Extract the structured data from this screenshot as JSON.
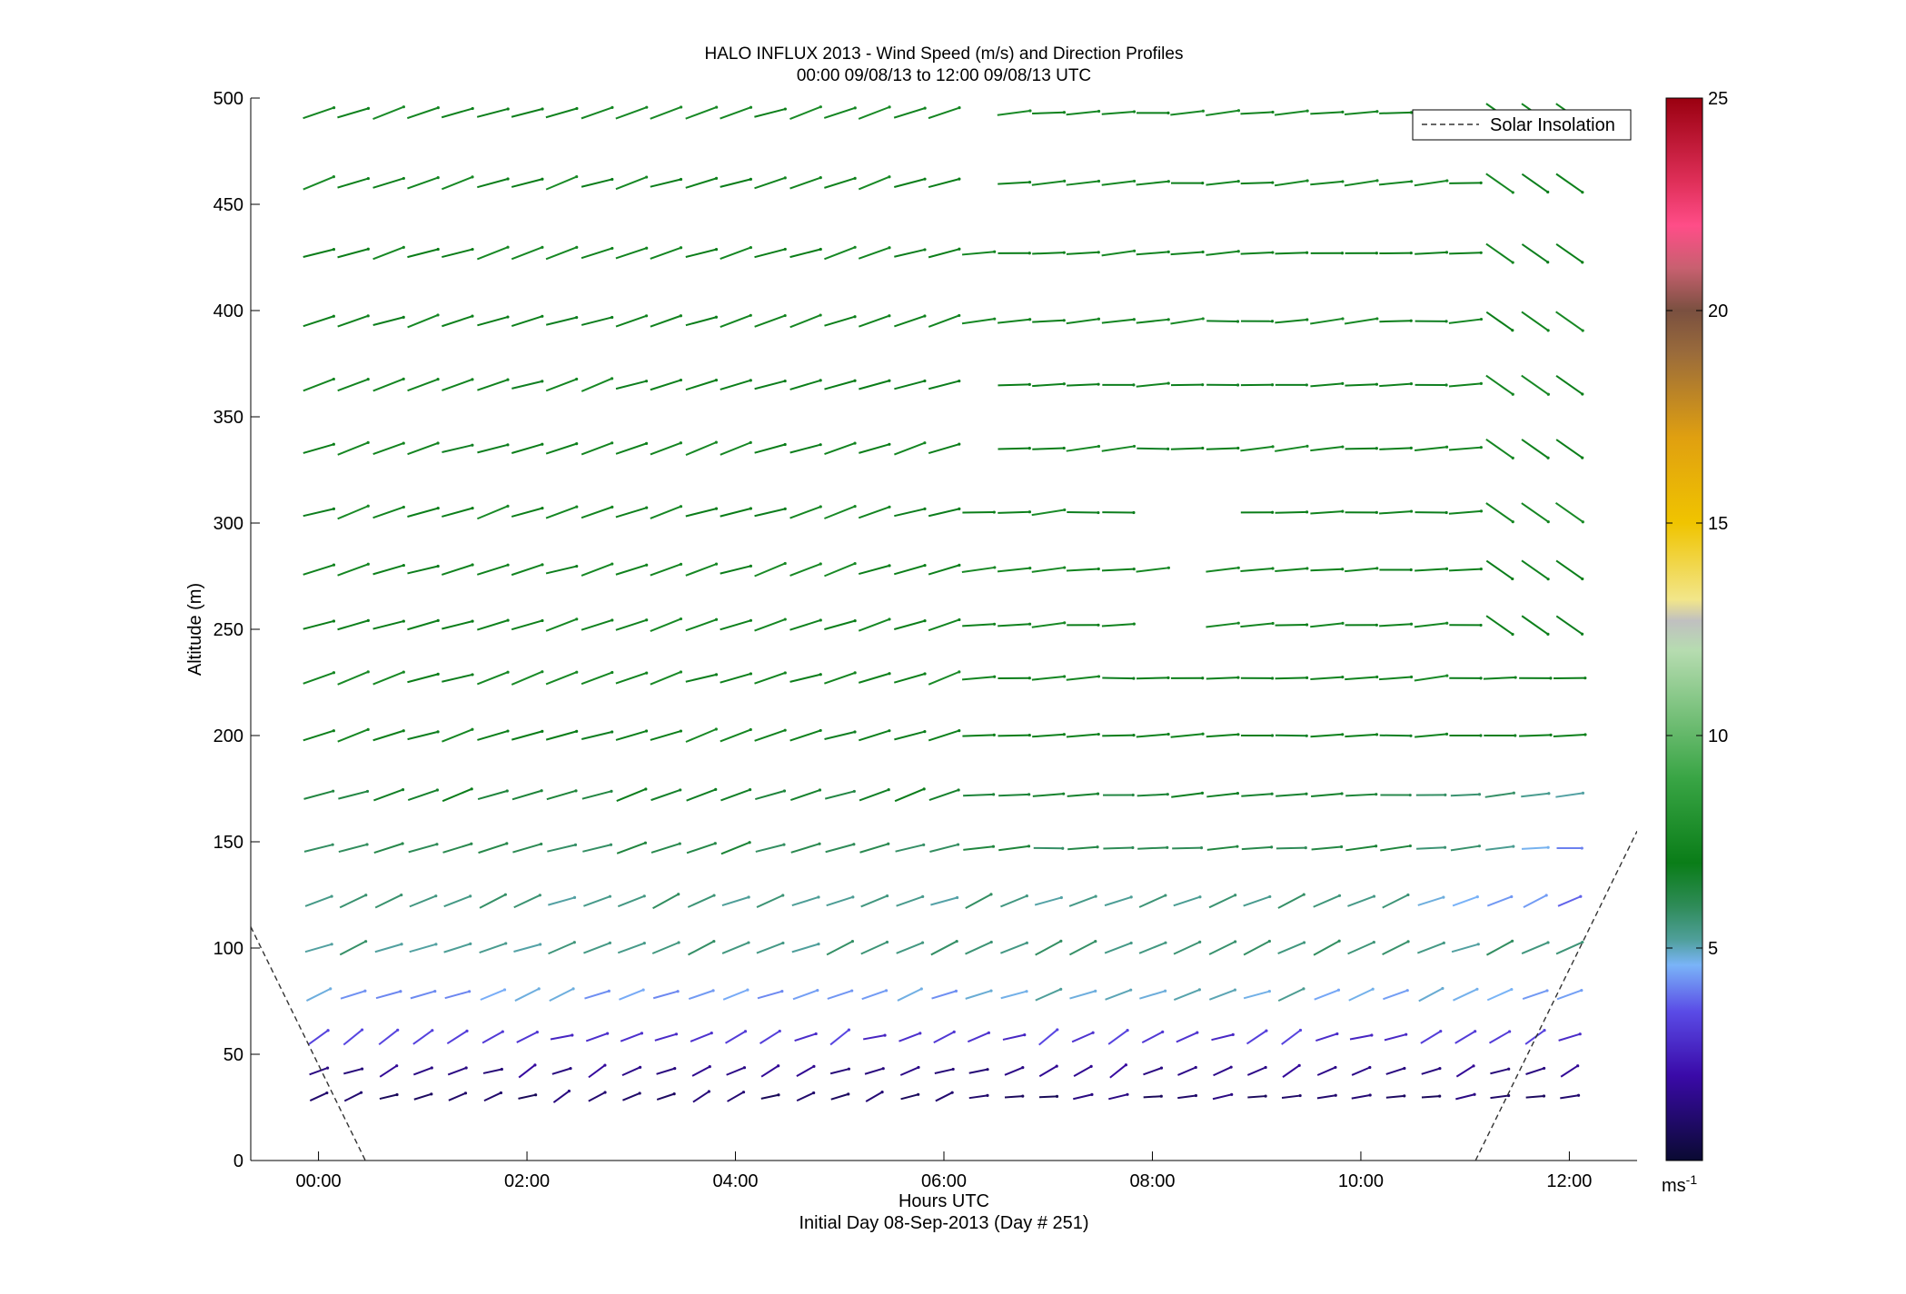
{
  "chart_data": {
    "type": "quiver",
    "title": "HALO INFLUX 2013 - Wind Speed (m/s) and Direction Profiles",
    "subtitle": "00:00 09/08/13 to 12:00 09/08/13  UTC",
    "xlabel": "Hours UTC",
    "xlabel2": "Initial Day 08-Sep-2013 (Day # 251)",
    "ylabel": "Altitude (m)",
    "x_tick_labels": [
      "00:00",
      "02:00",
      "04:00",
      "06:00",
      "08:00",
      "10:00",
      "12:00"
    ],
    "x_tick_values_hours": [
      0,
      2,
      4,
      6,
      8,
      10,
      12
    ],
    "xlim_hours": [
      -0.65,
      12.65
    ],
    "y_tick_labels": [
      "0",
      "50",
      "100",
      "150",
      "200",
      "250",
      "300",
      "350",
      "400",
      "450",
      "500"
    ],
    "y_tick_values": [
      0,
      50,
      100,
      150,
      200,
      250,
      300,
      350,
      400,
      450,
      500
    ],
    "ylim": [
      0,
      500
    ],
    "legend": {
      "entries": [
        "Solar Insolation"
      ],
      "placement": "top-right",
      "line_style": "dashed"
    },
    "colorbar": {
      "label": "ms-1",
      "range": [
        0,
        25
      ],
      "tick_labels": [
        "5",
        "10",
        "15",
        "20",
        "25"
      ],
      "tick_values": [
        5,
        10,
        15,
        20,
        25
      ]
    },
    "solar_insolation": {
      "description": "dashed line",
      "left_segment": [
        [
          -0.65,
          110
        ],
        [
          0.45,
          0
        ]
      ],
      "right_segment": [
        [
          11.1,
          0
        ],
        [
          12.65,
          155
        ]
      ]
    },
    "altitudes": [
      30,
      42,
      58,
      78,
      100,
      122,
      147,
      172,
      200,
      227,
      252,
      278,
      305,
      335,
      365,
      395,
      427,
      460,
      493
    ],
    "times_hours": [
      0,
      0.33,
      0.67,
      1,
      1.33,
      1.67,
      2,
      2.33,
      2.67,
      3,
      3.33,
      3.67,
      4,
      4.33,
      4.67,
      5,
      5.33,
      5.67,
      6,
      6.33,
      6.67,
      7,
      7.33,
      7.67,
      8,
      8.33,
      8.67,
      9,
      9.33,
      9.67,
      10,
      10.33,
      10.67,
      11,
      11.33,
      11.67,
      12
    ],
    "speed_profile_ms": [
      1,
      1.5,
      3,
      4.5,
      5.5,
      5.5,
      6.2,
      6.6,
      7.2,
      7.3,
      7.3,
      7.3,
      7.3,
      7.2,
      7.2,
      7.2,
      7.3,
      7.3,
      7.4
    ],
    "direction_note": "arrows point mostly east-northeast near the surface, rotating to east-southeast aloft; late-period arrows slope down-right",
    "colorscale": [
      {
        "v": 0,
        "c": "#0a0a32"
      },
      {
        "v": 2,
        "c": "#3a0aa8"
      },
      {
        "v": 3.5,
        "c": "#5a4be6"
      },
      {
        "v": 4.6,
        "c": "#7ab4f8"
      },
      {
        "v": 5.2,
        "c": "#4f9f9a"
      },
      {
        "v": 6,
        "c": "#2e8b57"
      },
      {
        "v": 7,
        "c": "#0a7d18"
      },
      {
        "v": 9,
        "c": "#39a545"
      },
      {
        "v": 12,
        "c": "#b6dcb0"
      },
      {
        "v": 12.7,
        "c": "#c0c0c0"
      },
      {
        "v": 13.2,
        "c": "#f2e68a"
      },
      {
        "v": 15,
        "c": "#f0c400"
      },
      {
        "v": 17,
        "c": "#e0a010"
      },
      {
        "v": 19,
        "c": "#9a6b3b"
      },
      {
        "v": 20,
        "c": "#7a5040"
      },
      {
        "v": 21,
        "c": "#c86070"
      },
      {
        "v": 22,
        "c": "#ff4d88"
      },
      {
        "v": 23,
        "c": "#e0305a"
      },
      {
        "v": 25,
        "c": "#9a0010"
      }
    ]
  }
}
